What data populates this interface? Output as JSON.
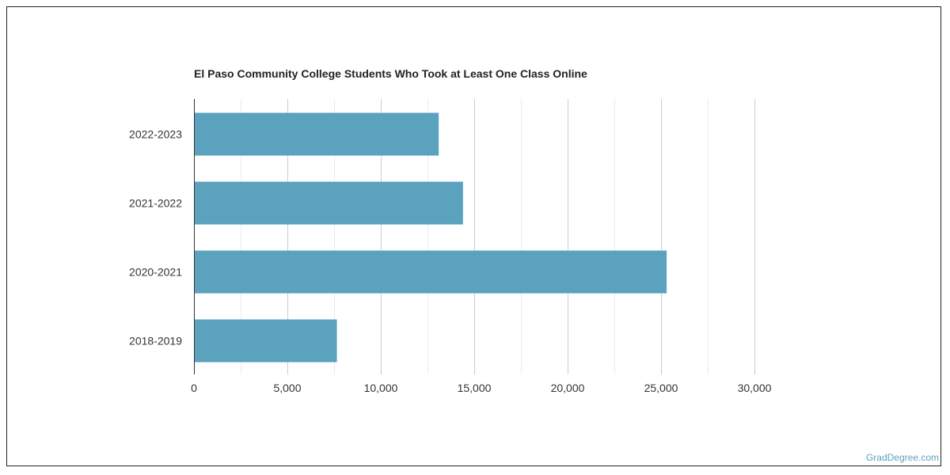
{
  "chart_data": {
    "type": "bar",
    "orientation": "horizontal",
    "title": "El Paso Community College Students Who Took at Least One Class Online",
    "categories": [
      "2022-2023",
      "2021-2022",
      "2020-2021",
      "2018-2019"
    ],
    "values": [
      13100,
      14400,
      25300,
      7650
    ],
    "xlim": [
      0,
      30000
    ],
    "xticks": [
      0,
      5000,
      10000,
      15000,
      20000,
      25000,
      30000
    ],
    "xtick_labels": [
      "0",
      "5,000",
      "10,000",
      "15,000",
      "20,000",
      "25,000",
      "30,000"
    ],
    "xlabel": "",
    "ylabel": "",
    "grid": true,
    "bar_color": "#5ba2bf"
  },
  "watermark": "GradDegree.com"
}
